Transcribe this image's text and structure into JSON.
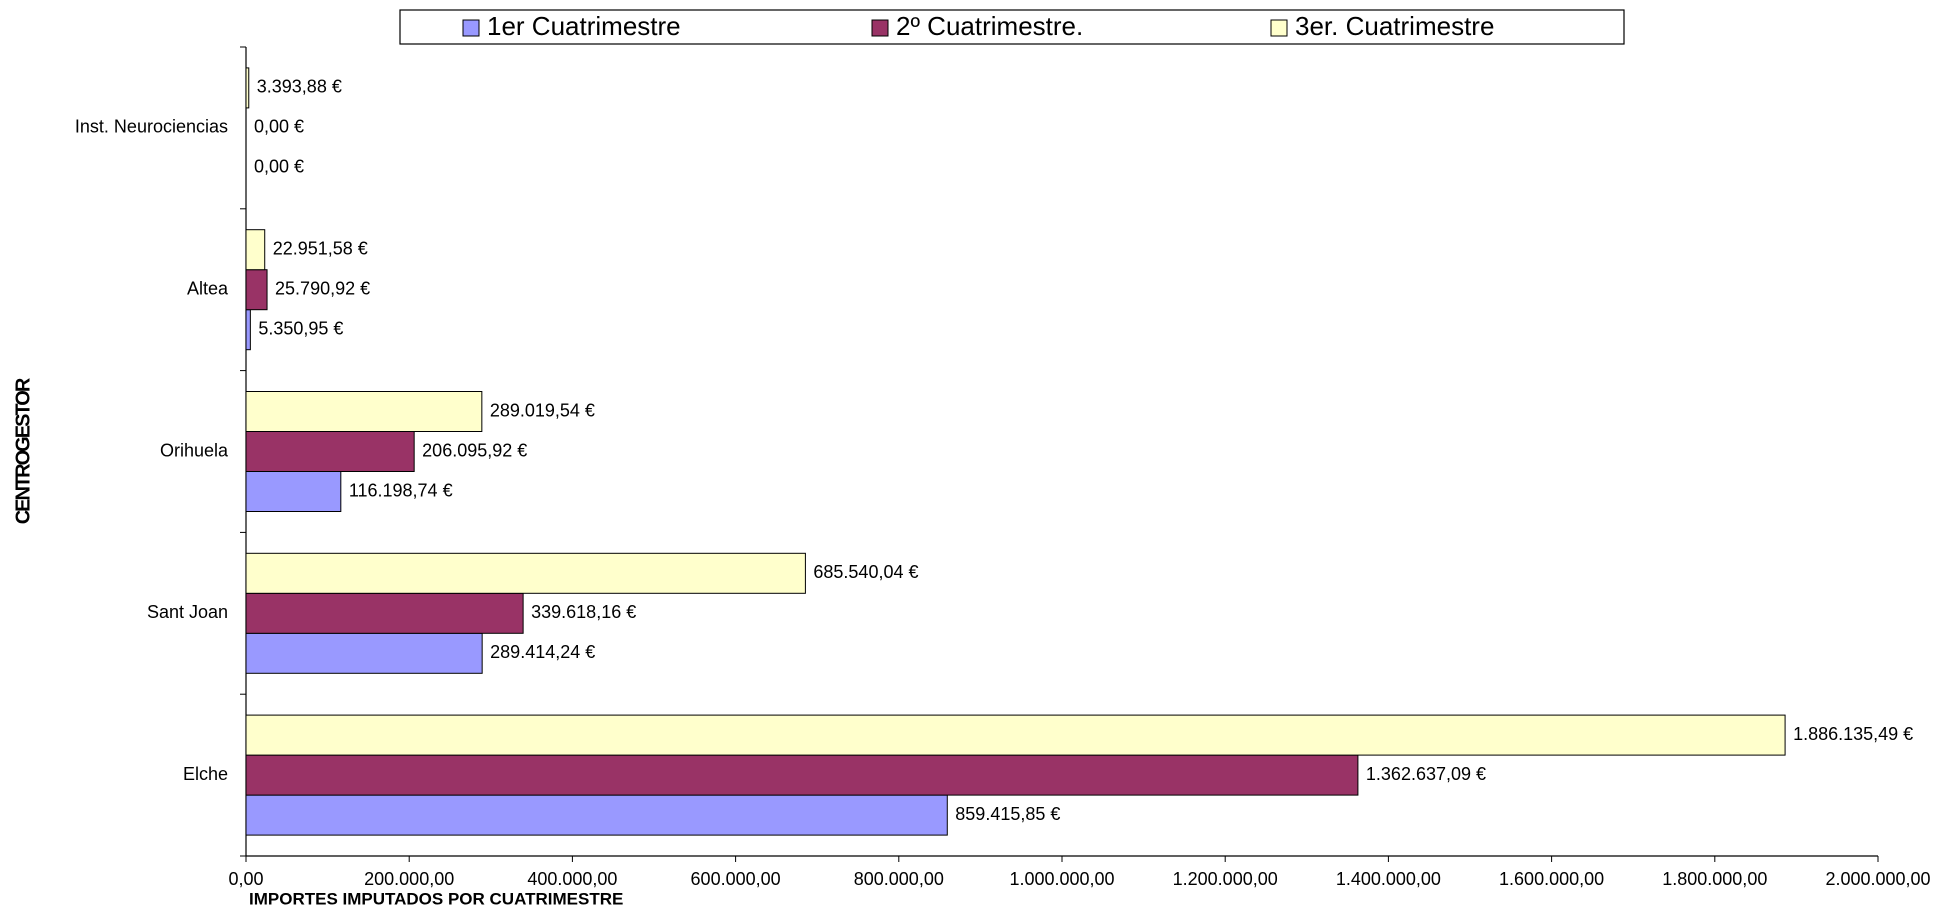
{
  "chart_data": {
    "type": "bar",
    "orientation": "horizontal",
    "categories": [
      "Elche",
      "Sant Joan",
      "Orihuela",
      "Altea",
      "Inst. Neurociencias"
    ],
    "series": [
      {
        "name": "1er Cuatrimestre",
        "color": "#9999ff",
        "values": [
          859415.85,
          289414.24,
          116198.74,
          5350.95,
          0
        ],
        "value_labels": [
          "859.415,85 €",
          "289.414,24 €",
          "116.198,74 €",
          "5.350,95 €",
          "0,00 €"
        ]
      },
      {
        "name": "2º Cuatrimestre.",
        "color": "#993366",
        "values": [
          1362637.09,
          339618.16,
          206095.92,
          25790.92,
          0
        ],
        "value_labels": [
          "1.362.637,09 €",
          "339.618,16 €",
          "206.095,92 €",
          "25.790,92 €",
          "0,00 €"
        ]
      },
      {
        "name": "3er. Cuatrimestre",
        "color": "#ffffcc",
        "values": [
          1886135.49,
          685540.04,
          289019.54,
          22951.58,
          3393.88
        ],
        "value_labels": [
          "1.886.135,49 €",
          "685.540,04 €",
          "289.019,54 €",
          "22.951,58 €",
          "3.393,88 €"
        ]
      }
    ],
    "xlabel": "IMPORTES IMPUTADOS POR CUATRIMESTRE",
    "ylabel": "CENTROGESTOR",
    "xlim": [
      0,
      2000000
    ],
    "xticks": [
      {
        "value": 0,
        "label": "0,00"
      },
      {
        "value": 200000,
        "label": "200.000,00"
      },
      {
        "value": 400000,
        "label": "400.000,00"
      },
      {
        "value": 600000,
        "label": "600.000,00"
      },
      {
        "value": 800000,
        "label": "800.000,00"
      },
      {
        "value": 1000000,
        "label": "1.000.000,00"
      },
      {
        "value": 1200000,
        "label": "1.200.000,00"
      },
      {
        "value": 1400000,
        "label": "1.400.000,00"
      },
      {
        "value": 1600000,
        "label": "1.600.000,00"
      },
      {
        "value": 1800000,
        "label": "1.800.000,00"
      },
      {
        "value": 2000000,
        "label": "2.000.000,00"
      }
    ],
    "legend": "top",
    "grid": false
  }
}
